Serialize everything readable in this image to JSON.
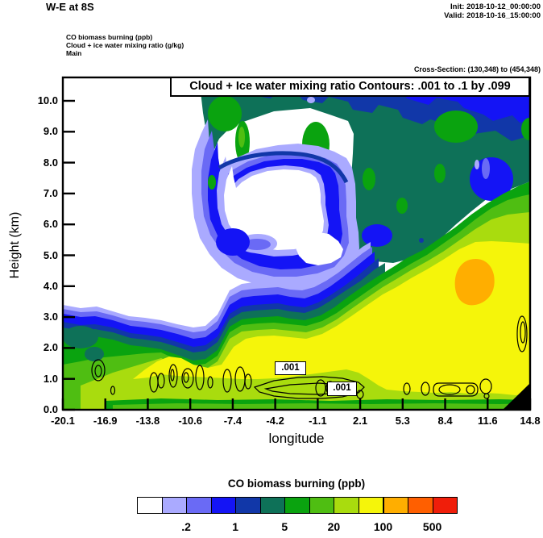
{
  "header": {
    "title": "W-E at 8S",
    "init": "Init: 2018-10-12_00:00:00",
    "valid": "Valid: 2018-10-16_15:00:00",
    "field_line_1": "CO biomass burning   (ppb)",
    "field_line_2": "Cloud + ice water mixing ratio   (g/kg)",
    "field_line_3": "Main",
    "cross_section": "Cross-Section: (130,348) to (454,348)"
  },
  "plot": {
    "title": "Cloud + Ice water mixing ratio Contours: .001 to .1 by .099",
    "xlabel": "longitude",
    "ylabel": "Height (km)",
    "x_tick_labels": [
      "-20.1",
      "-16.9",
      "-13.8",
      "-10.6",
      "-7.4",
      "-4.2",
      "-1.1",
      "2.1",
      "5.3",
      "8.4",
      "11.6",
      "14.8"
    ],
    "y_tick_labels": [
      "0.0",
      "1.0",
      "2.0",
      "3.0",
      "4.0",
      "5.0",
      "6.0",
      "7.0",
      "8.0",
      "9.0",
      "10.0"
    ],
    "contour_label_1": ".001",
    "contour_label_2": ".001"
  },
  "colorbar": {
    "title": "CO biomass burning  (ppb)",
    "labels": [
      ".2",
      "1",
      "5",
      "20",
      "100",
      "500"
    ],
    "colors": [
      "#ffffff",
      "#aaaaff",
      "#6a6af5",
      "#1414f5",
      "#1137a8",
      "#0e7158",
      "#0aa30f",
      "#4fbe12",
      "#a9dc0e",
      "#f5f50a",
      "#ffae00",
      "#ff5f00",
      "#f01e0a"
    ]
  },
  "palette": {
    "c1": "#ffffff",
    "c2": "#aaaaff",
    "c3": "#6a6af5",
    "c4": "#1414f5",
    "c5": "#1137a8",
    "c6": "#0e7158",
    "c7": "#0aa30f",
    "c8": "#4fbe12",
    "c9": "#a9dc0e",
    "c10": "#f5f50a",
    "c11": "#ffae00",
    "c12": "#ff5f00",
    "c13": "#f01e0a",
    "black": "#000000"
  },
  "chart_data": {
    "type": "heatmap",
    "title": "W-E at 8S",
    "subtitle": "Cloud + Ice water mixing ratio Contours: .001 to .1 by .099",
    "xlabel": "longitude",
    "ylabel": "Height (km)",
    "xlim": [
      -20.1,
      14.8
    ],
    "ylim": [
      0.0,
      10.8
    ],
    "x_ticks": [
      -20.1,
      -16.9,
      -13.8,
      -10.6,
      -7.4,
      -4.2,
      -1.1,
      2.1,
      5.3,
      8.4,
      11.6,
      14.8
    ],
    "y_ticks": [
      0,
      1,
      2,
      3,
      4,
      5,
      6,
      7,
      8,
      9,
      10
    ],
    "fill_variable": "CO biomass burning (ppb)",
    "fill_levels_ppb": [
      0.1,
      0.2,
      0.5,
      1,
      2,
      5,
      10,
      20,
      50,
      100,
      200,
      500
    ],
    "fill_colors": [
      "#ffffff",
      "#aaaaff",
      "#6a6af5",
      "#1414f5",
      "#1137a8",
      "#0e7158",
      "#0aa30f",
      "#4fbe12",
      "#a9dc0e",
      "#f5f50a",
      "#ffae00",
      "#ff5f00",
      "#f01e0a"
    ],
    "colorbar_tick_labels": [
      ".2",
      "1",
      "5",
      "20",
      "100",
      "500"
    ],
    "contour_variable": "Cloud + Ice water mixing ratio (g/kg)",
    "contour_levels": [
      0.001,
      0.1
    ],
    "contour_interval_text": ".001 to .1 by .099",
    "init_time": "2018-10-12_00:00:00",
    "valid_time": "2018-10-16_15:00:00",
    "cross_section_points": "(130,348) to (454,348)",
    "features": [
      "CO > 50 ppb (yellow) layer fills lowest ~2 km from about -15 deg to 14.8 deg and deepens to ~6 km east of 2 deg",
      "CO 100-200 ppb (orange) maximum near longitude 10-12 deg at 4-5 km height",
      "Clean air (< 0.1 ppb, white) wedge above ~4 km west of -2 deg containing a spiral/hook of 0.2-5 ppb centred near -7 to -2 deg, 5-7 km",
      "2-20 ppb (teal/green) canopy from ~7.5 km to model top across the eastern two thirds",
      "Thin cloud (.001 g/kg) contour cells lie near 1 km height between about -14 deg and 12 deg; two boxed .001 contour labels near -4 deg and -0.5 deg",
      "Black terrain cutout at lower-right corner near 14.8 deg below ~1 km"
    ]
  }
}
